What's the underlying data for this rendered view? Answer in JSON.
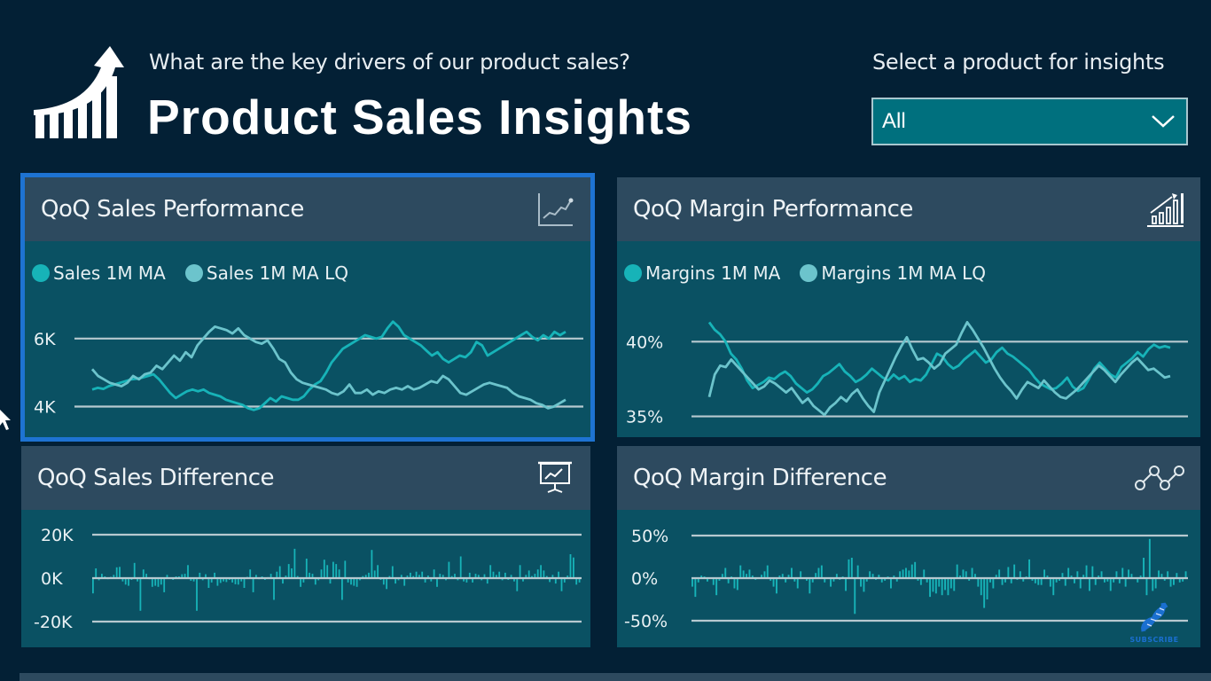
{
  "header": {
    "subtitle": "What are the key drivers of our product sales?",
    "title": "Product Sales Insights",
    "logo_icon": "growth-chart-arrow-icon"
  },
  "slicer": {
    "label": "Select a product for insights",
    "value": "All",
    "icon": "chevron-down-icon"
  },
  "colors": {
    "background": "#032035",
    "card_header": "#2d4a5f",
    "card_body": "#0a5163",
    "series_primary": "#17b3b8",
    "series_secondary": "#6cc4cc",
    "gridline": "#b7c9d0",
    "selection": "#1e73d2",
    "slicer_fill": "#00707e"
  },
  "cards": [
    {
      "title": "QoQ Sales Performance",
      "icon": "line-chart-icon"
    },
    {
      "title": "QoQ Margin Performance",
      "icon": "bar-growth-icon"
    },
    {
      "title": "QoQ Sales Difference",
      "icon": "presentation-board-icon"
    },
    {
      "title": "QoQ Margin Difference",
      "icon": "connected-nodes-icon"
    }
  ],
  "overlay": {
    "subscribe_label": "SUBSCRIBE",
    "icon": "dna-icon"
  },
  "chart_data": [
    {
      "type": "line",
      "title": "QoQ Sales Performance",
      "legend_position": "top-left",
      "yticks": [
        "4K",
        "6K"
      ],
      "ytick_values": [
        4000,
        6000
      ],
      "ylim": [
        3700,
        6700
      ],
      "grid": true,
      "series": [
        {
          "name": "Sales 1M MA",
          "color": "#17b3b8",
          "values": [
            4500,
            4550,
            4520,
            4600,
            4650,
            4700,
            4750,
            4800,
            4820,
            4850,
            4900,
            4950,
            4800,
            4600,
            4400,
            4250,
            4350,
            4450,
            4500,
            4450,
            4500,
            4400,
            4350,
            4300,
            4200,
            4150,
            4100,
            4050,
            3950,
            3900,
            3950,
            4100,
            4250,
            4150,
            4300,
            4250,
            4200,
            4200,
            4300,
            4500,
            4650,
            4750,
            5000,
            5300,
            5500,
            5700,
            5800,
            5900,
            6000,
            6100,
            6050,
            6000,
            6050,
            6300,
            6500,
            6350,
            6100,
            6000,
            5900,
            5800,
            5650,
            5500,
            5600,
            5400,
            5300,
            5400,
            5500,
            5450,
            5600,
            5900,
            5800,
            5500,
            5600,
            5700,
            5800,
            5900,
            6000,
            6100,
            6200,
            6050,
            5950,
            6100,
            6000,
            6200,
            6100,
            6200
          ]
        },
        {
          "name": "Sales 1M MA LQ",
          "color": "#6cc4cc",
          "values": [
            5100,
            4900,
            4800,
            4700,
            4650,
            4600,
            4700,
            4900,
            4800,
            4950,
            5000,
            5200,
            5100,
            5300,
            5500,
            5350,
            5600,
            5450,
            5800,
            6000,
            6200,
            6350,
            6300,
            6250,
            6150,
            6300,
            6100,
            6000,
            5900,
            5850,
            5950,
            5700,
            5400,
            5300,
            5000,
            4800,
            4700,
            4650,
            4600,
            4550,
            4500,
            4400,
            4350,
            4450,
            4650,
            4400,
            4400,
            4500,
            4350,
            4450,
            4400,
            4500,
            4550,
            4500,
            4600,
            4500,
            4550,
            4650,
            4750,
            4700,
            4900,
            4800,
            4600,
            4400,
            4350,
            4450,
            4550,
            4650,
            4700,
            4650,
            4600,
            4550,
            4400,
            4300,
            4250,
            4200,
            4100,
            4050,
            3950,
            4000,
            4100,
            4200
          ]
        }
      ]
    },
    {
      "type": "line",
      "title": "QoQ Margin Performance",
      "legend_position": "top-left",
      "yticks": [
        "35%",
        "40%"
      ],
      "ytick_values": [
        35,
        40
      ],
      "ylim": [
        34.5,
        41.8
      ],
      "grid": true,
      "series": [
        {
          "name": "Margins 1M MA",
          "color": "#17b3b8",
          "values": [
            41.3,
            40.8,
            40.5,
            40.0,
            39.2,
            38.8,
            38.2,
            37.4,
            36.9,
            37.1,
            37.3,
            37.6,
            37.5,
            37.8,
            38.0,
            37.7,
            37.2,
            36.9,
            36.6,
            36.8,
            37.2,
            37.7,
            37.9,
            38.2,
            38.5,
            38.0,
            37.7,
            37.3,
            37.5,
            37.8,
            38.2,
            37.9,
            37.6,
            37.4,
            37.8,
            37.5,
            37.7,
            37.3,
            37.5,
            37.4,
            37.8,
            38.5,
            39.2,
            39.0,
            38.5,
            38.2,
            38.4,
            38.8,
            39.1,
            39.4,
            39.0,
            38.6,
            38.8,
            39.3,
            39.6,
            39.2,
            39.0,
            38.7,
            38.4,
            38.1,
            37.6,
            37.2,
            37.0,
            36.8,
            36.9,
            37.2,
            37.6,
            37.0,
            36.7,
            36.9,
            37.5,
            38.2,
            38.6,
            38.2,
            37.8,
            37.6,
            38.3,
            38.6,
            38.9,
            39.3,
            39.0,
            39.5,
            39.8,
            39.6,
            39.7,
            39.6
          ]
        },
        {
          "name": "Margins 1M MA LQ",
          "color": "#6cc4cc",
          "values": [
            36.3,
            37.8,
            38.4,
            38.3,
            38.8,
            38.4,
            38.0,
            37.6,
            37.2,
            36.8,
            37.0,
            37.4,
            37.2,
            36.9,
            36.6,
            36.9,
            36.4,
            35.9,
            36.2,
            35.7,
            35.4,
            35.1,
            35.6,
            35.9,
            36.3,
            36.0,
            36.5,
            36.8,
            36.2,
            35.7,
            35.3,
            36.6,
            37.4,
            38.2,
            39.0,
            39.7,
            40.3,
            39.5,
            38.8,
            38.9,
            38.6,
            38.2,
            38.5,
            39.2,
            39.5,
            39.8,
            40.6,
            41.3,
            40.8,
            40.2,
            39.6,
            38.9,
            38.2,
            37.6,
            37.1,
            36.7,
            36.2,
            36.8,
            37.3,
            37.1,
            36.9,
            37.4,
            37.0,
            36.6,
            36.3,
            36.2,
            36.5,
            36.8,
            37.2,
            37.6,
            38.0,
            38.4,
            38.1,
            37.7,
            37.3,
            37.8,
            38.2,
            38.6,
            38.9,
            38.5,
            38.1,
            38.2,
            37.9,
            37.6,
            37.7
          ]
        }
      ]
    },
    {
      "type": "bar",
      "title": "QoQ Sales Difference",
      "yticks": [
        "-20K",
        "0K",
        "20K"
      ],
      "ytick_values": [
        -20000,
        0,
        20000
      ],
      "ylim": [
        -20000,
        20000
      ],
      "grid": true,
      "series": [
        {
          "name": "QoQ Sales Difference",
          "color": "#17b3b8",
          "values": [
            -7000,
            4500,
            -1000,
            2000,
            800,
            -500,
            600,
            1500,
            5000,
            5200,
            -1500,
            -3000,
            -3500,
            -800,
            7000,
            -1500,
            -15000,
            4000,
            2000,
            -500,
            -4000,
            -3500,
            -4000,
            -3000,
            -6500,
            1500,
            200,
            -800,
            800,
            800,
            1800,
            2000,
            6000,
            -1200,
            -1500,
            -15000,
            2500,
            -1000,
            1800,
            -4500,
            -2000,
            2500,
            -3500,
            -2200,
            -1500,
            -1800,
            -800,
            -2000,
            -2800,
            -3000,
            -1500,
            -4500,
            600,
            4000,
            -6500,
            1500,
            -500,
            800,
            -800,
            500,
            2000,
            -10000,
            3000,
            5500,
            -2500,
            1200,
            6500,
            4500,
            13500,
            1000,
            -4000,
            -2000,
            9000,
            2500,
            2000,
            -3000,
            -1000,
            4000,
            8500,
            6000,
            -2500,
            7500,
            6500,
            4000,
            -10000,
            8000,
            -2000,
            -3000,
            -3500,
            -4000,
            -1000,
            1000,
            1500,
            2500,
            13000,
            3500,
            6000,
            -800,
            -3000,
            -5000,
            1000,
            5500,
            -2500,
            -1000,
            1500,
            -3500,
            1200,
            2500,
            1000,
            3000,
            1500,
            3000,
            -2000,
            1200,
            -1500,
            4000,
            -4000,
            2000,
            1500,
            -1000,
            7500,
            1000,
            2000,
            -1000,
            10000,
            -1500,
            -2000,
            2500,
            -2000,
            2000,
            1500,
            -1000,
            1800,
            -2500,
            6000,
            3000,
            1500,
            3000,
            -1000,
            2500,
            -800,
            1500,
            -1500,
            -6000,
            6000,
            -1500,
            1500,
            3500,
            1000,
            2000,
            4000,
            6000,
            3500,
            1000,
            -1800,
            1500,
            -2500,
            3000,
            -6000,
            -2000,
            1200,
            11000,
            9500,
            -3000,
            -2000
          ]
        }
      ]
    },
    {
      "type": "bar",
      "title": "QoQ Margin Difference",
      "yticks": [
        "-50%",
        "0%",
        "50%"
      ],
      "ytick_values": [
        -50,
        0,
        50
      ],
      "ylim": [
        -50,
        50
      ],
      "grid": true,
      "series": [
        {
          "name": "QoQ Margin Difference",
          "color": "#17b3b8",
          "values": [
            -10,
            -22,
            -5,
            3,
            2,
            -4,
            1,
            -8,
            -20,
            -3,
            5,
            12,
            -6,
            2,
            -12,
            -14,
            15,
            9,
            5,
            10,
            3,
            -2,
            1,
            4,
            8,
            15,
            -3,
            -10,
            -18,
            3,
            5,
            -5,
            4,
            12,
            -4,
            -12,
            8,
            1,
            -3,
            -18,
            -5,
            6,
            12,
            15,
            -5,
            0,
            -10,
            -4,
            5,
            -2,
            2,
            -15,
            22,
            24,
            -42,
            15,
            -10,
            -16,
            -4,
            8,
            5,
            -2,
            4,
            -5,
            -3,
            2,
            -12,
            3,
            -4,
            8,
            10,
            12,
            9,
            16,
            19,
            -3,
            -8,
            10,
            -5,
            -22,
            -16,
            -18,
            -10,
            -20,
            -14,
            -20,
            -12,
            -15,
            16,
            3,
            10,
            8,
            -3,
            12,
            5,
            -10,
            -20,
            -35,
            -25,
            -5,
            -12,
            4,
            10,
            -8,
            -5,
            13,
            -6,
            16,
            -2,
            8,
            -4,
            2,
            22,
            -3,
            -6,
            -8,
            -8,
            10,
            3,
            -10,
            -20,
            -5,
            -3,
            6,
            -9,
            12,
            3,
            -6,
            8,
            -12,
            4,
            15,
            -15,
            14,
            -8,
            3,
            8,
            -5,
            -4,
            -15,
            -5,
            8,
            -6,
            12,
            -10,
            10,
            5,
            1,
            -5,
            3,
            24,
            -20,
            46,
            -15,
            -12,
            9,
            5,
            -3,
            8,
            -10,
            -8,
            6,
            -5,
            -4,
            8
          ]
        }
      ]
    }
  ]
}
